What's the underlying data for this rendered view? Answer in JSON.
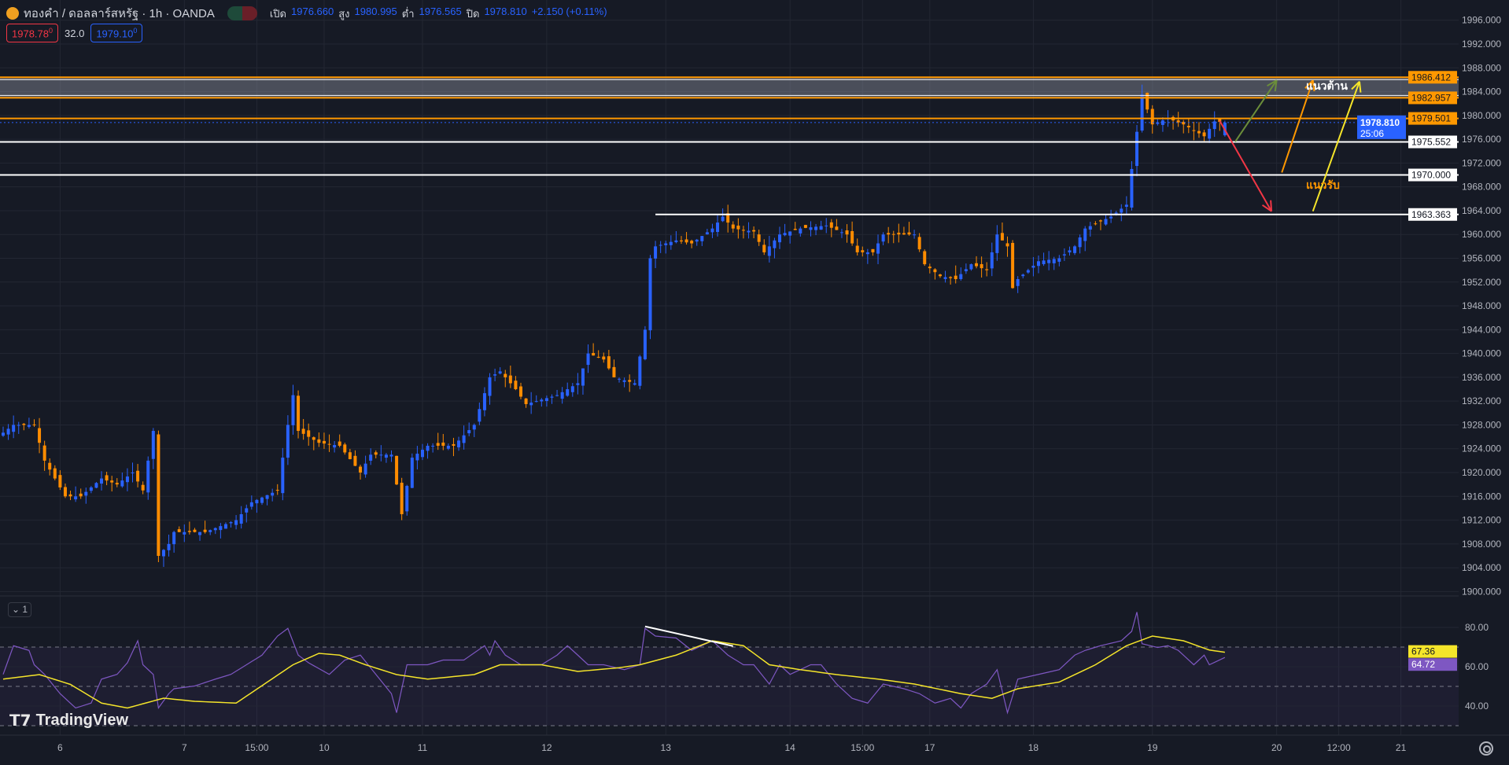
{
  "header": {
    "symbol": "ทองคำ / ดอลลาร์สหรัฐ · 1h · OANDA",
    "open_label": "เปิด",
    "open": "1976.660",
    "high_label": "สูง",
    "high": "1980.995",
    "low_label": "ต่ำ",
    "low": "1976.565",
    "close_label": "ปิด",
    "close": "1978.810",
    "change": "+2.150 (+0.11%)"
  },
  "quote": {
    "sell": "1978.78",
    "sell_sup": "0",
    "spread": "32.0",
    "buy": "1979.10",
    "buy_sup": "0"
  },
  "colors": {
    "up": "#2962ff",
    "down": "#ff8c00",
    "bg": "#161a25",
    "rsi": "#7e57c2",
    "rsi_ma": "#f5e52a",
    "resistance": "#ff9800"
  },
  "price_axis": {
    "ticks": [
      "1996.000",
      "1992.000",
      "1988.000",
      "1984.000",
      "1980.000",
      "1976.000",
      "1972.000",
      "1968.000",
      "1964.000",
      "1960.000",
      "1956.000",
      "1952.000",
      "1948.000",
      "1944.000",
      "1940.000",
      "1936.000",
      "1932.000",
      "1928.000",
      "1924.000",
      "1920.000",
      "1916.000",
      "1912.000",
      "1908.000",
      "1904.000",
      "1900.000"
    ],
    "min": 1900,
    "max": 1996
  },
  "levels": [
    {
      "price": 1986.412,
      "label": "1986.412",
      "kind": "orange"
    },
    {
      "price": 1982.957,
      "label": "1982.957",
      "kind": "orange"
    },
    {
      "price": 1979.501,
      "label": "1979.501",
      "kind": "orange"
    },
    {
      "price": 1975.552,
      "label": "1975.552",
      "kind": "white"
    },
    {
      "price": 1970.0,
      "label": "1970.000",
      "kind": "white"
    },
    {
      "price": 1963.363,
      "label": "1963.363",
      "kind": "white",
      "from_index": 126
    }
  ],
  "current": {
    "price": 1978.81,
    "label": "1978.810",
    "countdown": "25:06"
  },
  "annotations": {
    "resistance": "แนวต้าน",
    "support": "แนวรับ"
  },
  "arrows": [
    {
      "color": "#6b8e3a",
      "from": [
        238,
        1975.6
      ],
      "to": [
        246,
        1985.9
      ]
    },
    {
      "color": "#ff9800",
      "from": [
        247,
        1970.4
      ],
      "to": [
        253,
        1985.9
      ]
    },
    {
      "color": "#f5e52a",
      "from": [
        253,
        1963.9
      ],
      "to": [
        262,
        1985.7
      ]
    },
    {
      "color": "#f23645",
      "from": [
        235,
        1979.1
      ],
      "to": [
        245,
        1963.9
      ]
    }
  ],
  "time_axis": [
    {
      "i": 11,
      "label": "6"
    },
    {
      "i": 35,
      "label": "7"
    },
    {
      "i": 49,
      "label": "15:00"
    },
    {
      "i": 62,
      "label": "10"
    },
    {
      "i": 81,
      "label": "11"
    },
    {
      "i": 105,
      "label": "12"
    },
    {
      "i": 128,
      "label": "13"
    },
    {
      "i": 152,
      "label": "14"
    },
    {
      "i": 166,
      "label": "15:00"
    },
    {
      "i": 179,
      "label": "17"
    },
    {
      "i": 199,
      "label": "18"
    },
    {
      "i": 222,
      "label": "19"
    },
    {
      "i": 246,
      "label": "20"
    },
    {
      "i": 258,
      "label": "12:00"
    },
    {
      "i": 270,
      "label": "21"
    }
  ],
  "candles_close_waypoints": [
    [
      0,
      1926.7
    ],
    [
      2,
      1928
    ],
    [
      6,
      1928
    ],
    [
      8,
      1922
    ],
    [
      12,
      1916
    ],
    [
      15,
      1916
    ],
    [
      19,
      1919
    ],
    [
      22,
      1918
    ],
    [
      25,
      1920
    ],
    [
      27,
      1917
    ],
    [
      29,
      1927
    ],
    [
      30,
      1906
    ],
    [
      32,
      1908
    ],
    [
      33,
      1910
    ],
    [
      39,
      1910
    ],
    [
      45,
      1912
    ],
    [
      48,
      1915
    ],
    [
      53,
      1917
    ],
    [
      55,
      1928
    ],
    [
      56,
      1933
    ],
    [
      57,
      1927
    ],
    [
      61,
      1925
    ],
    [
      65,
      1924.5
    ],
    [
      69,
      1920
    ],
    [
      71,
      1923
    ],
    [
      75,
      1923
    ],
    [
      77,
      1913
    ],
    [
      79,
      1922.5
    ],
    [
      82,
      1924.5
    ],
    [
      87,
      1924.5
    ],
    [
      91,
      1928
    ],
    [
      94,
      1936
    ],
    [
      96,
      1937
    ],
    [
      99,
      1934
    ],
    [
      101,
      1931.5
    ],
    [
      107,
      1933
    ],
    [
      111,
      1935
    ],
    [
      113,
      1940
    ],
    [
      116,
      1939
    ],
    [
      118,
      1936
    ],
    [
      122,
      1935
    ],
    [
      124,
      1944
    ],
    [
      125,
      1956
    ],
    [
      126,
      1958
    ],
    [
      130,
      1959
    ],
    [
      133,
      1958.5
    ],
    [
      137,
      1961
    ],
    [
      139,
      1963
    ],
    [
      141,
      1961
    ],
    [
      145,
      1960.5
    ],
    [
      147,
      1957
    ],
    [
      150,
      1960
    ],
    [
      154,
      1961
    ],
    [
      159,
      1961.5
    ],
    [
      163,
      1960
    ],
    [
      165,
      1957
    ],
    [
      168,
      1957
    ],
    [
      170,
      1960
    ],
    [
      173,
      1960
    ],
    [
      176,
      1960
    ],
    [
      178,
      1955
    ],
    [
      181,
      1953
    ],
    [
      184,
      1952.5
    ],
    [
      187,
      1955
    ],
    [
      190,
      1954
    ],
    [
      192,
      1960
    ],
    [
      194,
      1958
    ],
    [
      195,
      1951
    ],
    [
      196,
      1952.5
    ],
    [
      200,
      1955.5
    ],
    [
      204,
      1956
    ],
    [
      207,
      1958
    ],
    [
      209,
      1961
    ],
    [
      214,
      1963
    ],
    [
      217,
      1965
    ],
    [
      218,
      1971
    ],
    [
      220,
      1983.5
    ],
    [
      221,
      1981
    ],
    [
      222,
      1978.5
    ],
    [
      225,
      1979.5
    ],
    [
      228,
      1978.5
    ],
    [
      232,
      1976.5
    ],
    [
      234,
      1979
    ],
    [
      236,
      1978.81
    ]
  ],
  "rsi": {
    "ticks": [
      "80.00",
      "60.00",
      "40.00"
    ],
    "value": "64.72",
    "ma_value": "67.36",
    "collapse_label": "1",
    "waypoints": [
      [
        0,
        56.1
      ],
      [
        2,
        70.7
      ],
      [
        5,
        68.3
      ],
      [
        6,
        61
      ],
      [
        8,
        56.1
      ],
      [
        11,
        46.3
      ],
      [
        14,
        39
      ],
      [
        17,
        41.5
      ],
      [
        19,
        53.7
      ],
      [
        22,
        56.1
      ],
      [
        24,
        62
      ],
      [
        26,
        73.2
      ],
      [
        27,
        61
      ],
      [
        29,
        56.1
      ],
      [
        30,
        39
      ],
      [
        32,
        46.3
      ],
      [
        33,
        48.8
      ],
      [
        37,
        50.2
      ],
      [
        41,
        53.7
      ],
      [
        44,
        56.1
      ],
      [
        47,
        61
      ],
      [
        50,
        65.9
      ],
      [
        53,
        75.6
      ],
      [
        55,
        79.5
      ],
      [
        57,
        65.9
      ],
      [
        59,
        62
      ],
      [
        63,
        56.1
      ],
      [
        66,
        63.4
      ],
      [
        69,
        65.9
      ],
      [
        72,
        56.1
      ],
      [
        75,
        46.3
      ],
      [
        76,
        36.6
      ],
      [
        78,
        61
      ],
      [
        82,
        61
      ],
      [
        85,
        63.4
      ],
      [
        89,
        63.4
      ],
      [
        93,
        70.7
      ],
      [
        94,
        65.9
      ],
      [
        95,
        73.2
      ],
      [
        97,
        65.9
      ],
      [
        100,
        61
      ],
      [
        104,
        61
      ],
      [
        107,
        65.9
      ],
      [
        109,
        70.7
      ],
      [
        111,
        65.9
      ],
      [
        113,
        61
      ],
      [
        116,
        61
      ],
      [
        120,
        58.5
      ],
      [
        123,
        61
      ],
      [
        124,
        79.5
      ],
      [
        126,
        75.6
      ],
      [
        130,
        74.6
      ],
      [
        133,
        68.3
      ],
      [
        137,
        73.2
      ],
      [
        140,
        65.9
      ],
      [
        143,
        61
      ],
      [
        145,
        61
      ],
      [
        148,
        51.2
      ],
      [
        150,
        61
      ],
      [
        152,
        56.1
      ],
      [
        156,
        61
      ],
      [
        158,
        61
      ],
      [
        161,
        51.2
      ],
      [
        164,
        43.9
      ],
      [
        167,
        41.5
      ],
      [
        170,
        51.2
      ],
      [
        174,
        48.8
      ],
      [
        177,
        46.3
      ],
      [
        180,
        41.5
      ],
      [
        183,
        43.9
      ],
      [
        185,
        39
      ],
      [
        187,
        46.3
      ],
      [
        190,
        51.2
      ],
      [
        192,
        58.5
      ],
      [
        194,
        36.6
      ],
      [
        196,
        53.7
      ],
      [
        200,
        56.1
      ],
      [
        204,
        58.5
      ],
      [
        207,
        65.9
      ],
      [
        209,
        68.3
      ],
      [
        212,
        70.7
      ],
      [
        216,
        73.2
      ],
      [
        218,
        78
      ],
      [
        219,
        87.8
      ],
      [
        220,
        71.7
      ],
      [
        223,
        69.8
      ],
      [
        225,
        70.7
      ],
      [
        227,
        68.3
      ],
      [
        230,
        61
      ],
      [
        232,
        65.9
      ],
      [
        233,
        61
      ],
      [
        236,
        64.72
      ]
    ],
    "ma_waypoints": [
      [
        0,
        53.7
      ],
      [
        7,
        56
      ],
      [
        13,
        51
      ],
      [
        19,
        41.5
      ],
      [
        24,
        39
      ],
      [
        31,
        44
      ],
      [
        37,
        42.4
      ],
      [
        45,
        41.5
      ],
      [
        56,
        61
      ],
      [
        61,
        66.8
      ],
      [
        65,
        65.9
      ],
      [
        70,
        61
      ],
      [
        76,
        56
      ],
      [
        82,
        53.7
      ],
      [
        91,
        56
      ],
      [
        96,
        61
      ],
      [
        104,
        61
      ],
      [
        111,
        57.6
      ],
      [
        119,
        59.5
      ],
      [
        123,
        61
      ],
      [
        130,
        65.9
      ],
      [
        137,
        73.2
      ],
      [
        143,
        70.7
      ],
      [
        148,
        61
      ],
      [
        154,
        58.5
      ],
      [
        161,
        56
      ],
      [
        169,
        53.7
      ],
      [
        176,
        51.2
      ],
      [
        185,
        46.3
      ],
      [
        191,
        43.9
      ],
      [
        196,
        48.8
      ],
      [
        204,
        52.2
      ],
      [
        211,
        61
      ],
      [
        217,
        70.7
      ],
      [
        222,
        75.6
      ],
      [
        228,
        73.2
      ],
      [
        233,
        68.5
      ],
      [
        236,
        67.36
      ]
    ],
    "trendline": [
      [
        124,
        80.5
      ],
      [
        141,
        70.5
      ]
    ]
  },
  "watermark": "TradingView"
}
